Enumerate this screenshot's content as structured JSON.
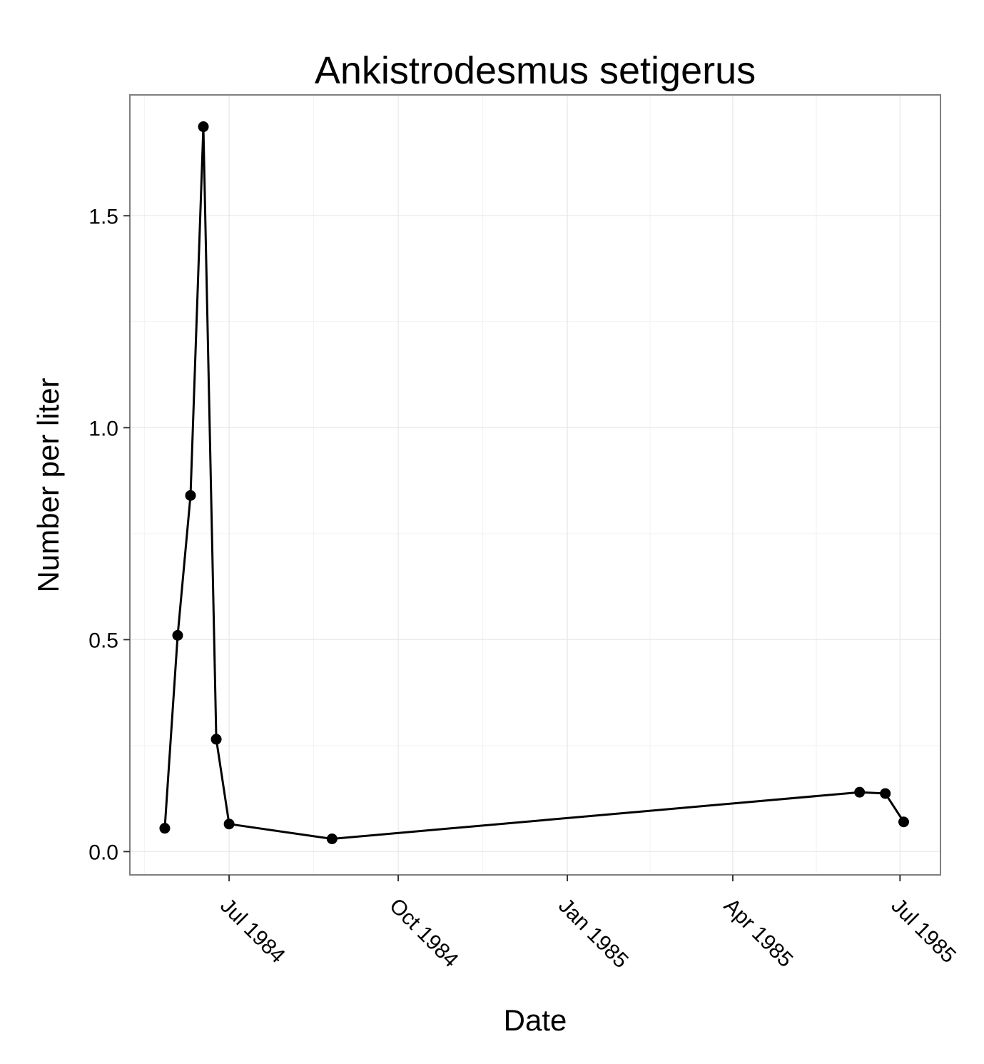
{
  "chart_data": {
    "type": "line",
    "title": "Ankistrodesmus setigerus",
    "xlabel": "Date",
    "ylabel": "Number per liter",
    "x_ticks": [
      {
        "date": "1984-07-01",
        "label": "Jul 1984"
      },
      {
        "date": "1984-10-01",
        "label": "Oct 1984"
      },
      {
        "date": "1985-01-01",
        "label": "Jan 1985"
      },
      {
        "date": "1985-04-01",
        "label": "Apr 1985"
      },
      {
        "date": "1985-07-01",
        "label": "Jul 1985"
      }
    ],
    "y_ticks": [
      {
        "value": 0.0,
        "label": "0.0"
      },
      {
        "value": 0.5,
        "label": "0.5"
      },
      {
        "value": 1.0,
        "label": "1.0"
      },
      {
        "value": 1.5,
        "label": "1.5"
      }
    ],
    "xlim": [
      "1984-05-08",
      "1985-07-23"
    ],
    "ylim": [
      -0.055,
      1.785
    ],
    "grid": true,
    "series": [
      {
        "color": "#000000",
        "points": [
          {
            "x": "1984-05-27",
            "y": 0.055
          },
          {
            "x": "1984-06-03",
            "y": 0.51
          },
          {
            "x": "1984-06-10",
            "y": 0.84
          },
          {
            "x": "1984-06-17",
            "y": 1.71
          },
          {
            "x": "1984-06-24",
            "y": 0.265
          },
          {
            "x": "1984-07-01",
            "y": 0.065
          },
          {
            "x": "1984-08-26",
            "y": 0.03
          },
          {
            "x": "1985-06-09",
            "y": 0.14
          },
          {
            "x": "1985-06-23",
            "y": 0.137
          },
          {
            "x": "1985-07-03",
            "y": 0.07
          }
        ]
      }
    ]
  }
}
